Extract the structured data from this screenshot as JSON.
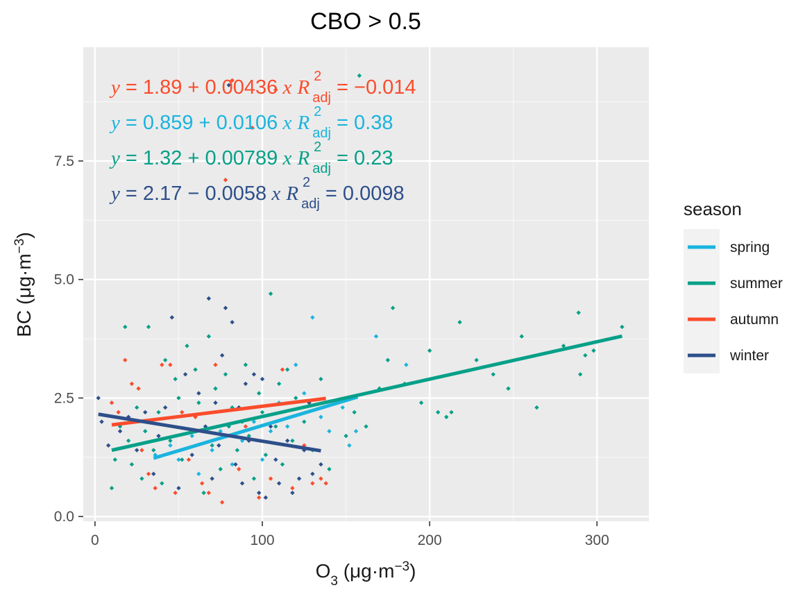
{
  "chart_data": {
    "type": "scatter",
    "title": "CBO > 0.5",
    "xlabel": {
      "main": "O",
      "sub": "3",
      "unit_open": " (μg·m",
      "unit_sup": "−3",
      "unit_close": ")"
    },
    "ylabel": {
      "main": "BC (μg·m",
      "sup": "−3",
      "close": ")"
    },
    "xlim": [
      -7,
      331
    ],
    "ylim": [
      -0.1,
      9.9
    ],
    "x_ticks": [
      0,
      100,
      200,
      300
    ],
    "x_tick_labels": [
      "0",
      "100",
      "200",
      "300"
    ],
    "y_ticks": [
      0,
      2.5,
      5,
      7.5
    ],
    "y_tick_labels": [
      "0.0",
      "2.5",
      "5.0",
      "7.5"
    ],
    "grid": true,
    "legend": {
      "title": "season",
      "position": "right"
    },
    "series": [
      {
        "name": "spring",
        "color": "#1ab4de",
        "fit": {
          "x": [
            35,
            157
          ],
          "intercept": 0.859,
          "slope": 0.0106
        },
        "equation": {
          "y": "y",
          "a": " = 0.859",
          "op": " + ",
          "b": "0.0106",
          "x": " x",
          "r": "R",
          "sup": "2",
          "sub": "adj",
          "r2": " = 0.38"
        },
        "points": [
          [
            36,
            1.3
          ],
          [
            45,
            1.5
          ],
          [
            50,
            1.2
          ],
          [
            58,
            1.7
          ],
          [
            62,
            0.9
          ],
          [
            70,
            1.4
          ],
          [
            75,
            1.8
          ],
          [
            82,
            1.1
          ],
          [
            88,
            1.6
          ],
          [
            95,
            2.0
          ],
          [
            100,
            1.2
          ],
          [
            105,
            1.8
          ],
          [
            110,
            2.4
          ],
          [
            115,
            1.9
          ],
          [
            120,
            3.2
          ],
          [
            125,
            2.6
          ],
          [
            130,
            4.2
          ],
          [
            135,
            2.1
          ],
          [
            140,
            1.8
          ],
          [
            148,
            2.3
          ],
          [
            152,
            1.5
          ],
          [
            156,
            1.8
          ],
          [
            168,
            3.8
          ],
          [
            186,
            3.2
          ]
        ]
      },
      {
        "name": "summer",
        "color": "#07a088",
        "fit": {
          "x": [
            10,
            315
          ],
          "intercept": 1.32,
          "slope": 0.00789
        },
        "equation": {
          "y": "y",
          "a": " = 1.32",
          "op": " + ",
          "b": "0.00789",
          "x": " x",
          "r": "R",
          "sup": "2",
          "sub": "adj",
          "r2": " = 0.23"
        },
        "points": [
          [
            10,
            0.6
          ],
          [
            12,
            1.2
          ],
          [
            15,
            1.9
          ],
          [
            18,
            4.0
          ],
          [
            20,
            1.6
          ],
          [
            22,
            1.1
          ],
          [
            25,
            2.3
          ],
          [
            28,
            0.8
          ],
          [
            30,
            1.8
          ],
          [
            32,
            4.0
          ],
          [
            35,
            1.4
          ],
          [
            38,
            2.2
          ],
          [
            40,
            0.7
          ],
          [
            42,
            3.3
          ],
          [
            45,
            1.6
          ],
          [
            48,
            2.9
          ],
          [
            50,
            2.5
          ],
          [
            52,
            1.2
          ],
          [
            55,
            3.6
          ],
          [
            58,
            1.8
          ],
          [
            60,
            3.1
          ],
          [
            62,
            2.4
          ],
          [
            65,
            0.5
          ],
          [
            68,
            3.8
          ],
          [
            70,
            1.5
          ],
          [
            72,
            2.7
          ],
          [
            75,
            1.0
          ],
          [
            78,
            3.0
          ],
          [
            80,
            1.9
          ],
          [
            82,
            2.3
          ],
          [
            85,
            1.4
          ],
          [
            88,
            2.0
          ],
          [
            90,
            3.2
          ],
          [
            92,
            1.7
          ],
          [
            95,
            0.8
          ],
          [
            98,
            2.6
          ],
          [
            100,
            2.2
          ],
          [
            102,
            1.3
          ],
          [
            105,
            4.7
          ],
          [
            108,
            1.9
          ],
          [
            110,
            2.8
          ],
          [
            112,
            1.1
          ],
          [
            115,
            3.1
          ],
          [
            118,
            1.6
          ],
          [
            120,
            2.5
          ],
          [
            125,
            2.0
          ],
          [
            130,
            1.4
          ],
          [
            135,
            2.9
          ],
          [
            140,
            1.0
          ],
          [
            145,
            2.4
          ],
          [
            150,
            1.7
          ],
          [
            155,
            2.2
          ],
          [
            158,
            9.3
          ],
          [
            162,
            1.9
          ],
          [
            170,
            2.7
          ],
          [
            175,
            3.3
          ],
          [
            178,
            4.4
          ],
          [
            185,
            2.8
          ],
          [
            195,
            2.4
          ],
          [
            200,
            3.5
          ],
          [
            205,
            2.2
          ],
          [
            210,
            2.1
          ],
          [
            213,
            2.2
          ],
          [
            218,
            4.1
          ],
          [
            228,
            3.3
          ],
          [
            238,
            3.0
          ],
          [
            247,
            2.7
          ],
          [
            255,
            3.8
          ],
          [
            264,
            2.3
          ],
          [
            280,
            3.6
          ],
          [
            289,
            4.3
          ],
          [
            290,
            3.0
          ],
          [
            293,
            3.4
          ],
          [
            298,
            3.5
          ],
          [
            315,
            4.0
          ]
        ]
      },
      {
        "name": "autumn",
        "color": "#fa4c2c",
        "fit": {
          "x": [
            10,
            138
          ],
          "intercept": 1.89,
          "slope": 0.00436
        },
        "equation": {
          "y": "y",
          "a": " = 1.89",
          "op": " + ",
          "b": "0.00436",
          "x": " x",
          "r": "R",
          "sup": "2",
          "sub": "adj",
          "r2": " = −0.014"
        },
        "points": [
          [
            10,
            2.4
          ],
          [
            14,
            2.2
          ],
          [
            18,
            3.3
          ],
          [
            22,
            2.8
          ],
          [
            26,
            2.7
          ],
          [
            28,
            1.4
          ],
          [
            32,
            0.9
          ],
          [
            36,
            0.6
          ],
          [
            40,
            3.2
          ],
          [
            45,
            3.2
          ],
          [
            48,
            0.5
          ],
          [
            52,
            2.2
          ],
          [
            56,
            1.2
          ],
          [
            60,
            2.1
          ],
          [
            64,
            0.7
          ],
          [
            68,
            0.5
          ],
          [
            72,
            3.2
          ],
          [
            76,
            0.3
          ],
          [
            78,
            7.1
          ],
          [
            82,
            9.2
          ],
          [
            86,
            1.0
          ],
          [
            90,
            1.9
          ],
          [
            94,
            8.2
          ],
          [
            98,
            0.4
          ],
          [
            105,
            0.8
          ],
          [
            108,
            9.0
          ],
          [
            112,
            3.1
          ],
          [
            118,
            0.6
          ],
          [
            125,
            1.5
          ],
          [
            130,
            0.7
          ],
          [
            135,
            0.8
          ],
          [
            138,
            0.7
          ]
        ]
      },
      {
        "name": "winter",
        "color": "#2d4f8a",
        "fit": {
          "x": [
            2,
            135
          ],
          "intercept": 2.17,
          "slope": -0.0058
        },
        "equation": {
          "y": "y",
          "a": " = 2.17",
          "op": " − ",
          "b": "0.0058",
          "x": " x",
          "r": "R",
          "sup": "2",
          "sub": "adj",
          "r2": " = 0.0098"
        },
        "points": [
          [
            2,
            2.5
          ],
          [
            4,
            2.0
          ],
          [
            8,
            1.5
          ],
          [
            15,
            1.8
          ],
          [
            20,
            2.1
          ],
          [
            25,
            1.4
          ],
          [
            30,
            2.2
          ],
          [
            35,
            0.9
          ],
          [
            38,
            1.7
          ],
          [
            42,
            2.3
          ],
          [
            46,
            4.2
          ],
          [
            50,
            0.6
          ],
          [
            54,
            3.0
          ],
          [
            58,
            1.3
          ],
          [
            62,
            2.6
          ],
          [
            66,
            1.9
          ],
          [
            68,
            4.6
          ],
          [
            70,
            0.8
          ],
          [
            72,
            2.4
          ],
          [
            74,
            1.5
          ],
          [
            76,
            3.4
          ],
          [
            78,
            4.4
          ],
          [
            80,
            9.1
          ],
          [
            82,
            4.1
          ],
          [
            84,
            1.1
          ],
          [
            86,
            2.3
          ],
          [
            88,
            0.7
          ],
          [
            90,
            2.8
          ],
          [
            92,
            1.6
          ],
          [
            95,
            3.0
          ],
          [
            98,
            0.5
          ],
          [
            100,
            2.9
          ],
          [
            102,
            0.4
          ],
          [
            105,
            1.9
          ],
          [
            108,
            1.2
          ],
          [
            110,
            0.7
          ],
          [
            115,
            1.6
          ],
          [
            118,
            0.5
          ],
          [
            122,
            0.8
          ],
          [
            125,
            1.4
          ],
          [
            128,
            2.4
          ],
          [
            130,
            0.9
          ],
          [
            135,
            1.1
          ]
        ]
      }
    ]
  }
}
